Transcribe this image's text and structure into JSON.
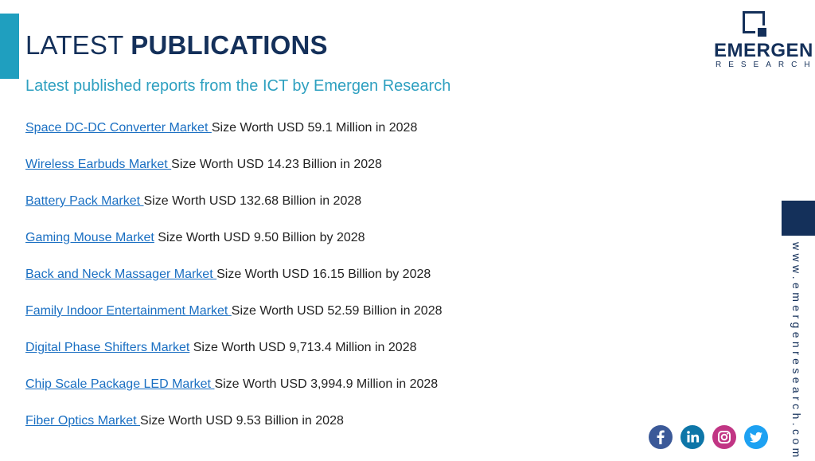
{
  "header": {
    "title_light": "LATEST",
    "title_bold": "PUBLICATIONS",
    "subtitle": "Latest published reports from the ICT by Emergen Research"
  },
  "logo": {
    "name": "EMERGEN",
    "sub": "RESEARCH"
  },
  "publications": [
    {
      "link": "Space DC-DC Converter Market ",
      "text": "Size Worth USD 59.1 Million in 2028"
    },
    {
      "link": "Wireless Earbuds Market ",
      "text": "Size Worth USD 14.23 Billion in 2028"
    },
    {
      "link": "Battery Pack Market ",
      "text": "Size Worth USD 132.68 Billion in 2028"
    },
    {
      "link": "Gaming Mouse Market",
      "text": " Size Worth USD 9.50 Billion by 2028"
    },
    {
      "link": "Back and Neck Massager Market ",
      "text": "Size Worth USD 16.15 Billion by 2028"
    },
    {
      "link": "Family Indoor Entertainment Market ",
      "text": "Size Worth USD 52.59 Billion in 2028"
    },
    {
      "link": "Digital Phase Shifters Market",
      "text": " Size Worth USD 9,713.4 Million in 2028"
    },
    {
      "link": "Chip Scale Package LED Market ",
      "text": "Size Worth USD 3,994.9 Million in 2028"
    },
    {
      "link": "Fiber Optics Market ",
      "text": "Size Worth USD 9.53 Billion in 2028"
    }
  ],
  "side": {
    "url": "www.emergenresearch.com"
  },
  "social": [
    {
      "name": "facebook-icon",
      "color": "#3b5998"
    },
    {
      "name": "linkedin-icon",
      "color": "#0e76a8"
    },
    {
      "name": "instagram-icon",
      "color": "#c13584"
    },
    {
      "name": "twitter-icon",
      "color": "#1da1f2"
    }
  ],
  "colors": {
    "navy": "#14305a",
    "accent": "#1f9fbf",
    "link": "#1a6fc2"
  }
}
